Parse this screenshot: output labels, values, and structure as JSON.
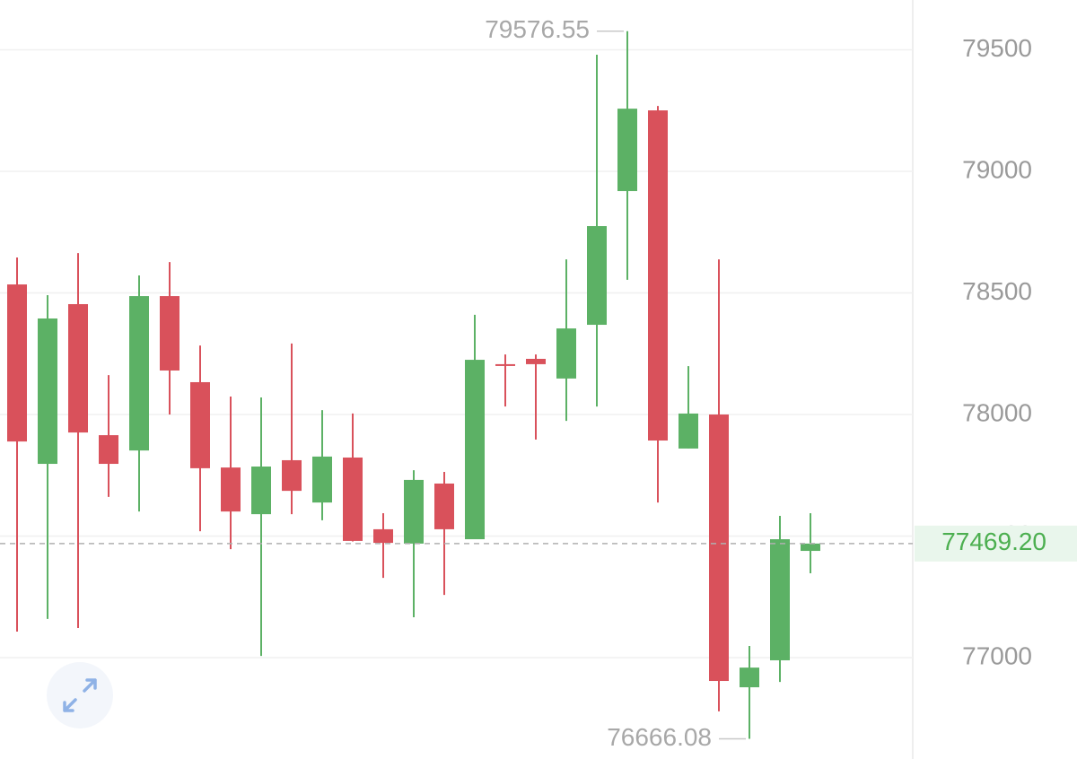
{
  "chart_data": {
    "type": "candlestick",
    "up_color": "#5cb165",
    "down_color": "#d9515b",
    "grid": true,
    "ylim": [
      76583,
      79705
    ],
    "yticks": [
      77000,
      77500,
      78000,
      78500,
      79000,
      79500
    ],
    "series": {
      "open": [
        78535,
        77797,
        78454,
        77915,
        77852,
        78487,
        78133,
        77782,
        77590,
        77812,
        77638,
        77823,
        77528,
        77469,
        77716,
        77487,
        78207,
        78229,
        78148,
        78369,
        78919,
        79251,
        77860,
        78000,
        76878,
        76989,
        77439
      ],
      "high": [
        78646,
        78491,
        78664,
        78162,
        78572,
        78627,
        78284,
        78074,
        78070,
        78292,
        78018,
        78004,
        77594,
        77771,
        77764,
        78410,
        78247,
        78247,
        78638,
        79480,
        79576.55,
        79269,
        78199,
        78638,
        77048,
        77583,
        77594
      ],
      "low": [
        77107,
        77159,
        77122,
        77661,
        77601,
        78000,
        77520,
        77446,
        77007,
        77590,
        77565,
        77478,
        77328,
        77166,
        77258,
        77487,
        78033,
        77897,
        77974,
        78033,
        78554,
        77638,
        77860,
        76779,
        76666.08,
        76900,
        77347
      ],
      "close": [
        77889,
        78395,
        77926,
        77797,
        78487,
        78181,
        77779,
        77601,
        77786,
        77686,
        77827,
        77480,
        77472,
        77731,
        77528,
        78225,
        78203,
        78207,
        78354,
        78775,
        79258,
        77893,
        78004,
        76904,
        76959,
        77487,
        77469.2
      ]
    },
    "last_price": {
      "value": 77469.2,
      "label": "77469.20"
    }
  }
}
